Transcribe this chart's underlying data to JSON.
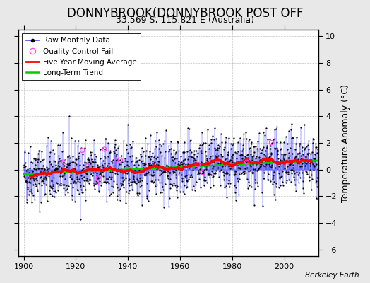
{
  "title": "DONNYBROOK(DONNYBROOK POST OFF",
  "subtitle": "33.569 S, 115.821 E (Australia)",
  "ylabel": "Temperature Anomaly (°C)",
  "attribution": "Berkeley Earth",
  "xlim": [
    1898,
    2013
  ],
  "ylim": [
    -6.5,
    10.5
  ],
  "yticks": [
    -6,
    -4,
    -2,
    0,
    2,
    4,
    6,
    8,
    10
  ],
  "xticks": [
    1900,
    1920,
    1940,
    1960,
    1980,
    2000
  ],
  "start_year": 1900,
  "end_year": 2012,
  "seed": 42,
  "raw_line_color": "#4444ff",
  "raw_dot_color": "#000000",
  "moving_avg_color": "#ff0000",
  "trend_color": "#00cc00",
  "qc_color": "#ff44ff",
  "plot_bg_color": "#ffffff",
  "fig_bg_color": "#e8e8e8",
  "grid_color": "#aaaaaa",
  "title_fontsize": 12,
  "subtitle_fontsize": 9,
  "label_fontsize": 9,
  "trend_slope": 0.009,
  "trend_intercept": -0.35,
  "noise_std": 1.1,
  "n_qc": 12
}
